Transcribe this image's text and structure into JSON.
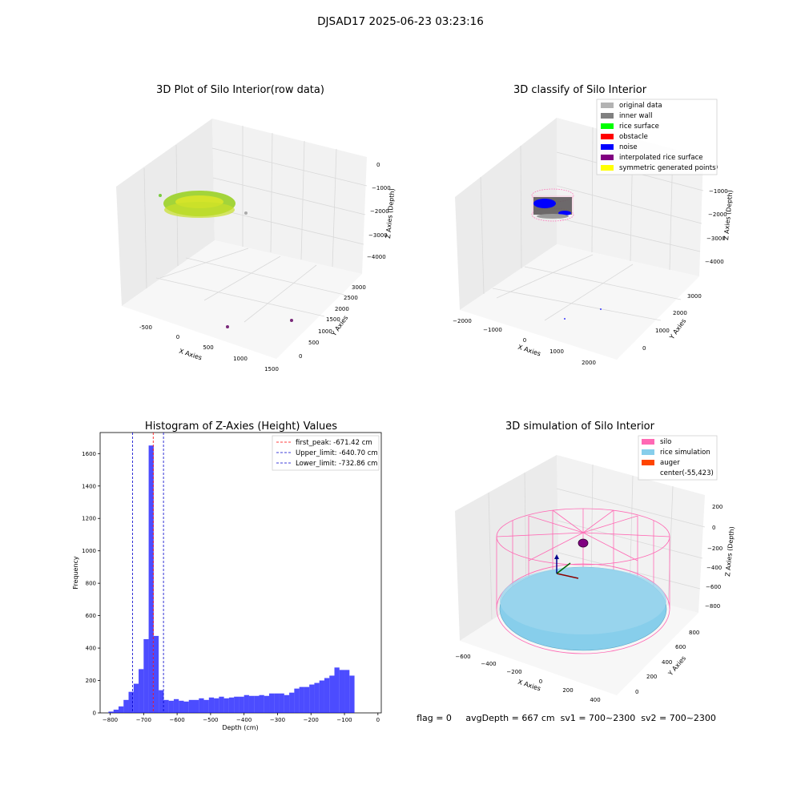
{
  "suptitle": "DJSAD17 2025-06-23 03:23:16",
  "status_line": "flag = 0     avgDepth = 667 cm  sv1 = 700~2300  sv2 = 700~2300",
  "colors": {
    "original_data": "#b3b3b3",
    "inner_wall": "#808080",
    "rice_surface": "#00ff00",
    "obstacle": "#ff0000",
    "noise": "#0000ff",
    "interpolated_rice_surface": "#800080",
    "symmetric_generated_points": "#ffff00",
    "silo": "#ff69b4",
    "rice_simulation": "#87ceeb",
    "auger": "#ff4500",
    "hist_bar": "#0000ff"
  },
  "panels": {
    "raw": {
      "title": "3D Plot of Silo Interior(row data)",
      "xlabel": "X Axies",
      "ylabel": "Y Axies",
      "zlabel": "Z Axies (Depth)",
      "xticks": [
        "-500",
        "0",
        "500",
        "1000",
        "1500"
      ],
      "yticks": [
        "0",
        "500",
        "1000",
        "1500",
        "2000",
        "2500",
        "3000"
      ],
      "zticks": [
        "0",
        "−1000",
        "−2000",
        "−3000",
        "−4000"
      ]
    },
    "classify": {
      "title": "3D classify of Silo Interior",
      "xlabel": "X Axies",
      "ylabel": "Y Axies",
      "zlabel": "Z Axies (Depth)",
      "xticks": [
        "−2000",
        "−1000",
        "0",
        "1000",
        "2000"
      ],
      "yticks": [
        "0",
        "1000",
        "2000",
        "3000"
      ],
      "zticks": [
        "0",
        "−1000",
        "−2000",
        "−3000",
        "−4000"
      ],
      "legend": [
        {
          "label": "original data",
          "color": "#b3b3b3"
        },
        {
          "label": "inner wall",
          "color": "#808080"
        },
        {
          "label": "rice surface",
          "color": "#00ff00"
        },
        {
          "label": "obstacle",
          "color": "#ff0000"
        },
        {
          "label": "noise",
          "color": "#0000ff"
        },
        {
          "label": "interpolated rice surface",
          "color": "#800080"
        },
        {
          "label": "symmetric generated points",
          "color": "#ffff00"
        }
      ]
    },
    "simulation": {
      "title": "3D simulation of Silo Interior",
      "xlabel": "X Axies",
      "ylabel": "Y Axies",
      "zlabel": "Z Axies (Depth)",
      "xticks": [
        "−600",
        "−400",
        "−200",
        "0",
        "200",
        "400"
      ],
      "yticks": [
        "0",
        "200",
        "400",
        "600",
        "800"
      ],
      "zticks": [
        "200",
        "0",
        "−200",
        "−400",
        "−600",
        "−800"
      ],
      "legend": [
        {
          "label": "silo",
          "color": "#ff69b4"
        },
        {
          "label": "rice simulation",
          "color": "#87ceeb"
        },
        {
          "label": "auger",
          "color": "#ff4500"
        },
        {
          "label": "center(-55,423)",
          "color": ""
        }
      ]
    }
  },
  "chart_data": {
    "type": "bar",
    "title": "Histogram of Z-Axies (Height) Values",
    "xlabel": "Depth (cm)",
    "ylabel": "Frequency",
    "xlim": [
      -830,
      10
    ],
    "ylim": [
      0,
      1730
    ],
    "xticks": [
      -800,
      -700,
      -600,
      -500,
      -400,
      -300,
      -200,
      -100,
      0
    ],
    "yticks": [
      0,
      200,
      400,
      600,
      800,
      1000,
      1200,
      1400,
      1600
    ],
    "bin_edges": [
      -805,
      -790,
      -775,
      -760,
      -745,
      -730,
      -715,
      -700,
      -685,
      -670,
      -655,
      -640,
      -625,
      -610,
      -595,
      -580,
      -565,
      -550,
      -535,
      -520,
      -505,
      -490,
      -475,
      -460,
      -445,
      -430,
      -415,
      -400,
      -385,
      -370,
      -355,
      -340,
      -325,
      -310,
      -295,
      -280,
      -265,
      -250,
      -235,
      -220,
      -205,
      -190,
      -175,
      -160,
      -145,
      -130,
      -115,
      -100,
      -85,
      -70,
      -55,
      -40,
      -25
    ],
    "counts": [
      8,
      20,
      40,
      80,
      130,
      180,
      270,
      455,
      1650,
      475,
      140,
      80,
      75,
      85,
      75,
      70,
      80,
      80,
      90,
      80,
      95,
      90,
      100,
      90,
      95,
      100,
      100,
      110,
      105,
      105,
      110,
      105,
      120,
      120,
      120,
      110,
      125,
      150,
      160,
      160,
      175,
      185,
      200,
      215,
      230,
      280,
      265,
      265,
      230,
      0,
      0,
      0
    ],
    "counts_note_unused": [],
    "lines": [
      {
        "label": "first_peak: -671.42 cm",
        "x": -671.42,
        "color": "#ff0000"
      },
      {
        "label": "Upper_limit: -640.70 cm",
        "x": -640.7,
        "color": "#0000cc"
      },
      {
        "label": "Lower_limit: -732.86 cm",
        "x": -732.86,
        "color": "#0000cc"
      }
    ]
  }
}
